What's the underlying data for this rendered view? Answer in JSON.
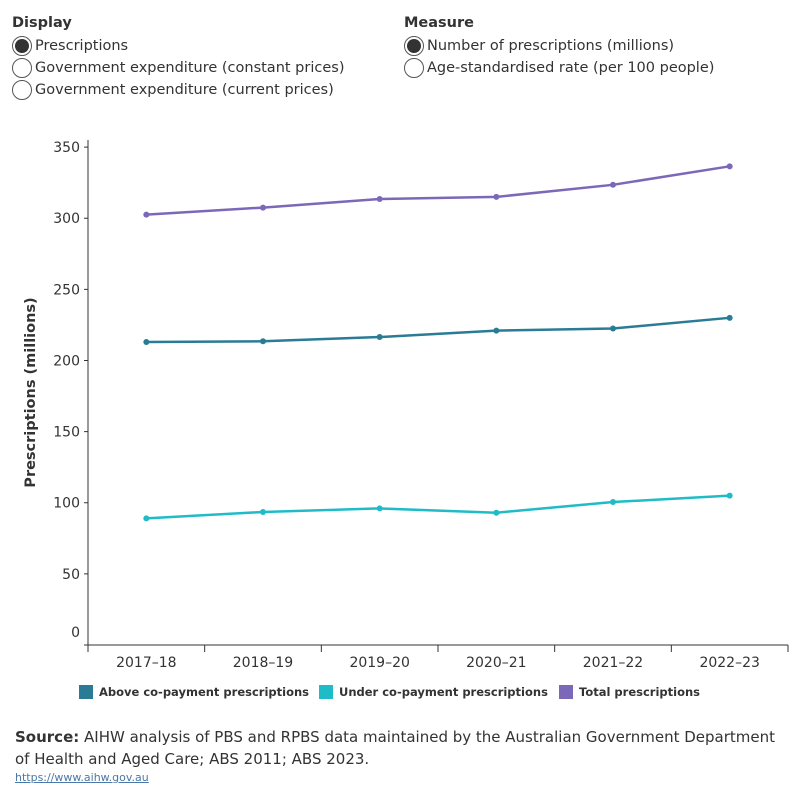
{
  "controls": {
    "display": {
      "title": "Display",
      "options": [
        {
          "label": "Prescriptions",
          "checked": true
        },
        {
          "label": "Government expenditure (constant prices)",
          "checked": false
        },
        {
          "label": "Government expenditure (current prices)",
          "checked": false
        }
      ]
    },
    "measure": {
      "title": "Measure",
      "options": [
        {
          "label": "Number of prescriptions (millions)",
          "checked": true
        },
        {
          "label": "Age-standardised rate (per 100 people)",
          "checked": false
        }
      ]
    }
  },
  "chart_data": {
    "type": "line",
    "x": [
      "2017–18",
      "2018–19",
      "2019–20",
      "2020–21",
      "2021–22",
      "2022–23"
    ],
    "ylabel": "Prescriptions (millions)",
    "xlabel": "",
    "ylim": [
      0,
      355
    ],
    "yticks": [
      0,
      50,
      100,
      150,
      200,
      250,
      300,
      350
    ],
    "grid": false,
    "legend_position": "bottom",
    "series": [
      {
        "name": "Above co-payment prescriptions",
        "color": "#2a7b96",
        "values": [
          213,
          213.5,
          216.5,
          221,
          222.5,
          230
        ]
      },
      {
        "name": "Under co-payment prescriptions",
        "color": "#1fbcc8",
        "values": [
          89,
          93.5,
          96,
          93,
          100.5,
          105
        ]
      },
      {
        "name": "Total prescriptions",
        "color": "#7b68b9",
        "values": [
          302.5,
          307.5,
          313.5,
          315,
          323.5,
          336.5
        ]
      }
    ]
  },
  "source": {
    "label": "Source:",
    "text": " AIHW analysis of PBS and RPBS data maintained by the Australian Government Department of Health and Aged Care; ABS 2011; ABS 2023."
  },
  "link": "https://www.aihw.gov.au"
}
